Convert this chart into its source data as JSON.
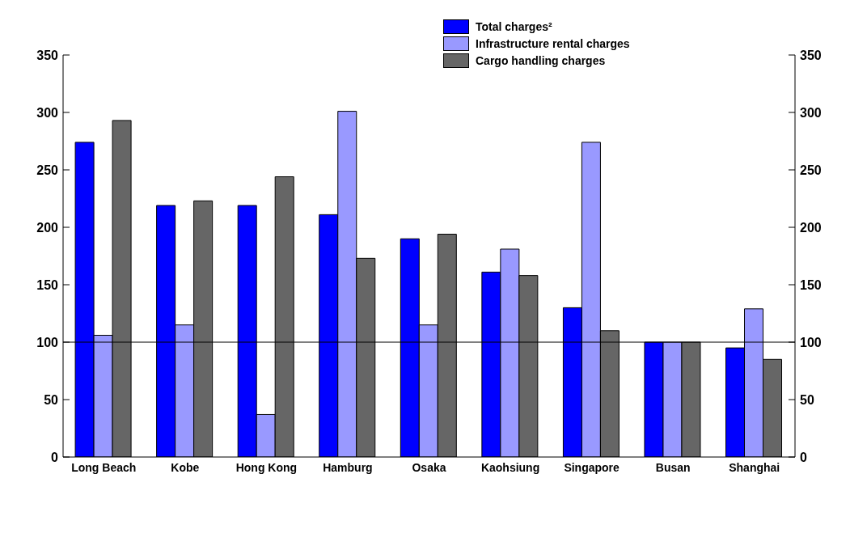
{
  "chart_data": {
    "type": "bar",
    "categories": [
      "Long Beach",
      "Kobe",
      "Hong Kong",
      "Hamburg",
      "Osaka",
      "Kaohsiung",
      "Singapore",
      "Busan",
      "Shanghai"
    ],
    "series": [
      {
        "name": "Total charges²",
        "color": "#0000ff",
        "values": [
          274,
          219,
          219,
          211,
          190,
          161,
          130,
          100,
          95
        ]
      },
      {
        "name": "Infrastructure rental charges",
        "color": "#9999ff",
        "values": [
          106,
          115,
          37,
          301,
          115,
          181,
          274,
          100,
          129
        ]
      },
      {
        "name": "Cargo handling charges",
        "color": "#666666",
        "values": [
          293,
          223,
          244,
          173,
          194,
          158,
          110,
          100,
          85
        ]
      }
    ],
    "ylim": [
      0,
      350
    ],
    "yticks": [
      0,
      50,
      100,
      150,
      200,
      250,
      300,
      350
    ],
    "y2lim": [
      0,
      350
    ],
    "y2ticks": [
      0,
      50,
      100,
      150,
      200,
      250,
      300,
      350
    ],
    "ref_lines": [
      {
        "axis": "y",
        "value": 100,
        "color": "#000000"
      }
    ],
    "grid": false,
    "legend": "top"
  }
}
